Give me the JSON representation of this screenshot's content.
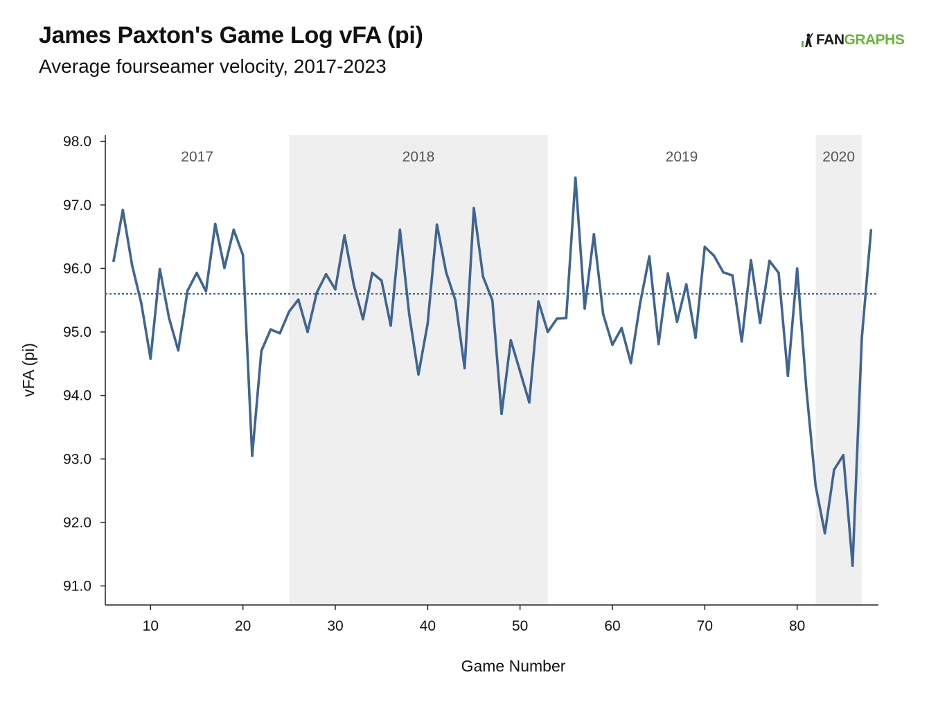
{
  "chart_data": {
    "type": "line",
    "title": "James Paxton's Game Log vFA (pi)",
    "subtitle": "Average fourseamer velocity, 2017-2023",
    "xlabel": "Game Number",
    "ylabel": "vFA (pi)",
    "xlim": [
      5.1,
      88.8
    ],
    "ylim": [
      90.7,
      98.1
    ],
    "x_ticks": [
      10,
      20,
      30,
      40,
      50,
      60,
      70,
      80
    ],
    "y_ticks": [
      91.0,
      92.0,
      93.0,
      94.0,
      95.0,
      96.0,
      97.0,
      98.0
    ],
    "average_line": 95.6,
    "grid": false,
    "season_bands": [
      {
        "label": "2017",
        "start": 5.1,
        "end": 25,
        "shaded": false
      },
      {
        "label": "2018",
        "start": 25,
        "end": 53,
        "shaded": true
      },
      {
        "label": "2019",
        "start": 53,
        "end": 82,
        "shaded": false
      },
      {
        "label": "2020",
        "start": 82,
        "end": 87,
        "shaded": true
      }
    ],
    "series": [
      {
        "color": "#3f6592",
        "x": [
          6,
          7,
          8,
          9,
          10,
          11,
          12,
          13,
          14,
          15,
          16,
          17,
          18,
          19,
          20,
          21,
          22,
          23,
          24,
          25,
          26,
          27,
          28,
          29,
          30,
          31,
          32,
          33,
          34,
          35,
          36,
          37,
          38,
          39,
          40,
          41,
          42,
          43,
          44,
          45,
          46,
          47,
          48,
          49,
          50,
          51,
          52,
          53,
          54,
          55,
          56,
          57,
          58,
          59,
          60,
          61,
          62,
          63,
          64,
          65,
          66,
          67,
          68,
          69,
          70,
          71,
          72,
          73,
          74,
          75,
          76,
          77,
          78,
          79,
          80,
          81,
          82,
          83,
          84,
          85,
          86,
          87,
          88
        ],
        "values": [
          96.12,
          96.92,
          96.05,
          95.45,
          94.58,
          95.99,
          95.22,
          94.71,
          95.65,
          95.93,
          95.64,
          96.7,
          96.01,
          96.61,
          96.21,
          93.05,
          94.7,
          95.04,
          94.98,
          95.32,
          95.51,
          95.0,
          95.62,
          95.91,
          95.67,
          96.52,
          95.74,
          95.2,
          95.93,
          95.81,
          95.1,
          96.61,
          95.28,
          94.33,
          95.13,
          96.69,
          95.94,
          95.5,
          94.43,
          96.95,
          95.87,
          95.5,
          93.71,
          94.87,
          94.38,
          93.89,
          95.48,
          95.0,
          95.21,
          95.22,
          97.43,
          95.37,
          96.54,
          95.28,
          94.8,
          95.06,
          94.51,
          95.45,
          96.19,
          94.81,
          95.92,
          95.16,
          95.75,
          94.91,
          96.34,
          96.2,
          95.94,
          95.89,
          94.85,
          96.13,
          95.14,
          96.12,
          95.93,
          94.31,
          96.0,
          94.1,
          92.58,
          91.83,
          92.83,
          93.06,
          91.32,
          94.9,
          96.6
        ]
      }
    ]
  },
  "logo": {
    "part1": "FAN",
    "part2": "GRAPHS",
    "brand_color": "#6bb33a"
  }
}
